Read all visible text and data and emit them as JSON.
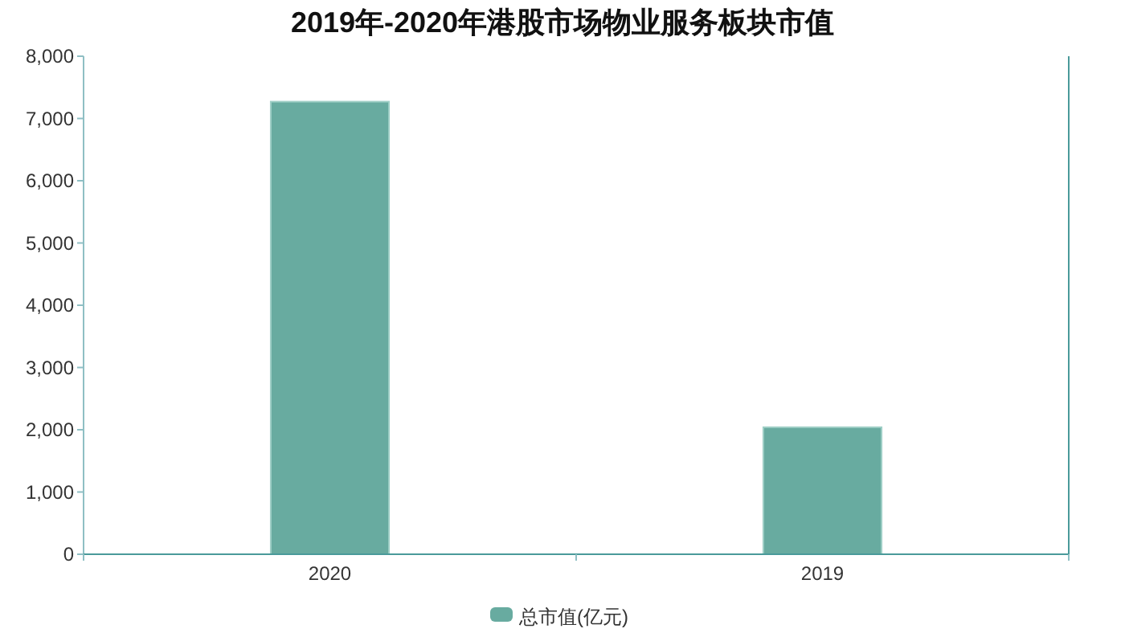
{
  "chart_data": {
    "type": "bar",
    "title": "2019年-2020年港股市场物业服务板块市值",
    "categories": [
      "2020",
      "2019"
    ],
    "series": [
      {
        "name": "总市值(亿元)",
        "color": "#68aba0",
        "values": [
          7270,
          2040
        ]
      }
    ],
    "ylim": [
      0,
      8000
    ],
    "yticks": [
      {
        "value": 0,
        "label": "0"
      },
      {
        "value": 1000,
        "label": "1,000"
      },
      {
        "value": 2000,
        "label": "2,000"
      },
      {
        "value": 3000,
        "label": "3,000"
      },
      {
        "value": 4000,
        "label": "4,000"
      },
      {
        "value": 5000,
        "label": "5,000"
      },
      {
        "value": 6000,
        "label": "6,000"
      },
      {
        "value": 7000,
        "label": "7,000"
      },
      {
        "value": 8000,
        "label": "8,000"
      }
    ],
    "grid": false,
    "legend": "bottom"
  }
}
